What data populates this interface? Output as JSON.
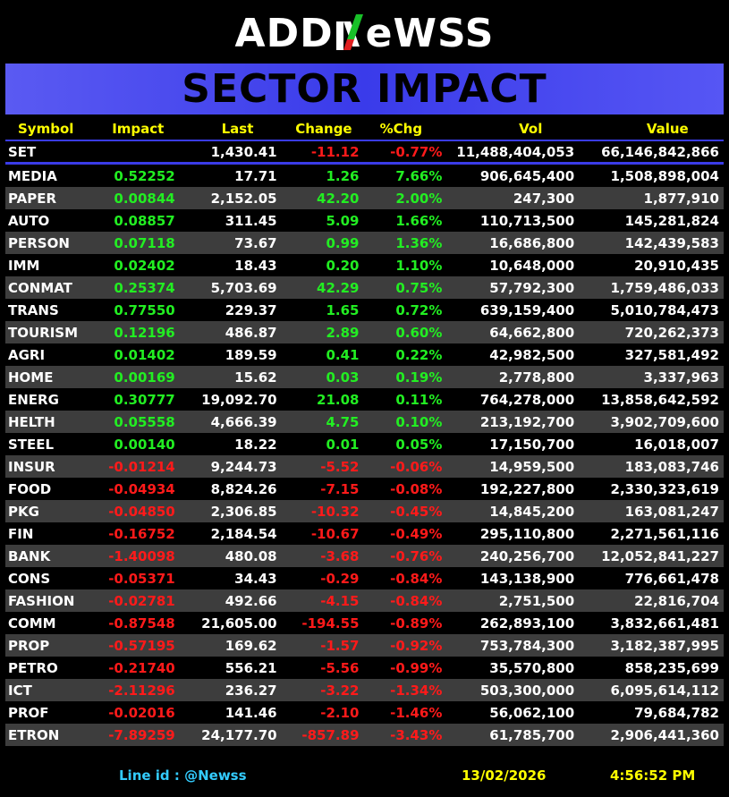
{
  "logo": {
    "left": "ADD",
    "right": "eWSS"
  },
  "banner": {
    "title": "SECTOR IMPACT"
  },
  "columns": [
    "Symbol",
    "Impact",
    "Last",
    "Change",
    "%Chg",
    "Vol",
    "Value"
  ],
  "set_row": {
    "symbol": "SET",
    "impact": "",
    "last": "1,430.41",
    "change": "-11.12",
    "pct": "-0.77%",
    "vol": "11,488,404,053",
    "value": "66,146,842,866"
  },
  "rows": [
    {
      "symbol": "MEDIA",
      "impact": "0.52252",
      "last": "17.71",
      "change": "1.26",
      "pct": "7.66%",
      "vol": "906,645,400",
      "value": "1,508,898,004",
      "dir": "pos"
    },
    {
      "symbol": "PAPER",
      "impact": "0.00844",
      "last": "2,152.05",
      "change": "42.20",
      "pct": "2.00%",
      "vol": "247,300",
      "value": "1,877,910",
      "dir": "pos"
    },
    {
      "symbol": "AUTO",
      "impact": "0.08857",
      "last": "311.45",
      "change": "5.09",
      "pct": "1.66%",
      "vol": "110,713,500",
      "value": "145,281,824",
      "dir": "pos"
    },
    {
      "symbol": "PERSON",
      "impact": "0.07118",
      "last": "73.67",
      "change": "0.99",
      "pct": "1.36%",
      "vol": "16,686,800",
      "value": "142,439,583",
      "dir": "pos"
    },
    {
      "symbol": "IMM",
      "impact": "0.02402",
      "last": "18.43",
      "change": "0.20",
      "pct": "1.10%",
      "vol": "10,648,000",
      "value": "20,910,435",
      "dir": "pos"
    },
    {
      "symbol": "CONMAT",
      "impact": "0.25374",
      "last": "5,703.69",
      "change": "42.29",
      "pct": "0.75%",
      "vol": "57,792,300",
      "value": "1,759,486,033",
      "dir": "pos"
    },
    {
      "symbol": "TRANS",
      "impact": "0.77550",
      "last": "229.37",
      "change": "1.65",
      "pct": "0.72%",
      "vol": "639,159,400",
      "value": "5,010,784,473",
      "dir": "pos"
    },
    {
      "symbol": "TOURISM",
      "impact": "0.12196",
      "last": "486.87",
      "change": "2.89",
      "pct": "0.60%",
      "vol": "64,662,800",
      "value": "720,262,373",
      "dir": "pos"
    },
    {
      "symbol": "AGRI",
      "impact": "0.01402",
      "last": "189.59",
      "change": "0.41",
      "pct": "0.22%",
      "vol": "42,982,500",
      "value": "327,581,492",
      "dir": "pos"
    },
    {
      "symbol": "HOME",
      "impact": "0.00169",
      "last": "15.62",
      "change": "0.03",
      "pct": "0.19%",
      "vol": "2,778,800",
      "value": "3,337,963",
      "dir": "pos"
    },
    {
      "symbol": "ENERG",
      "impact": "0.30777",
      "last": "19,092.70",
      "change": "21.08",
      "pct": "0.11%",
      "vol": "764,278,000",
      "value": "13,858,642,592",
      "dir": "pos"
    },
    {
      "symbol": "HELTH",
      "impact": "0.05558",
      "last": "4,666.39",
      "change": "4.75",
      "pct": "0.10%",
      "vol": "213,192,700",
      "value": "3,902,709,600",
      "dir": "pos"
    },
    {
      "symbol": "STEEL",
      "impact": "0.00140",
      "last": "18.22",
      "change": "0.01",
      "pct": "0.05%",
      "vol": "17,150,700",
      "value": "16,018,007",
      "dir": "pos"
    },
    {
      "symbol": "INSUR",
      "impact": "-0.01214",
      "last": "9,244.73",
      "change": "-5.52",
      "pct": "-0.06%",
      "vol": "14,959,500",
      "value": "183,083,746",
      "dir": "neg"
    },
    {
      "symbol": "FOOD",
      "impact": "-0.04934",
      "last": "8,824.26",
      "change": "-7.15",
      "pct": "-0.08%",
      "vol": "192,227,800",
      "value": "2,330,323,619",
      "dir": "neg"
    },
    {
      "symbol": "PKG",
      "impact": "-0.04850",
      "last": "2,306.85",
      "change": "-10.32",
      "pct": "-0.45%",
      "vol": "14,845,200",
      "value": "163,081,247",
      "dir": "neg"
    },
    {
      "symbol": "FIN",
      "impact": "-0.16752",
      "last": "2,184.54",
      "change": "-10.67",
      "pct": "-0.49%",
      "vol": "295,110,800",
      "value": "2,271,561,116",
      "dir": "neg"
    },
    {
      "symbol": "BANK",
      "impact": "-1.40098",
      "last": "480.08",
      "change": "-3.68",
      "pct": "-0.76%",
      "vol": "240,256,700",
      "value": "12,052,841,227",
      "dir": "neg"
    },
    {
      "symbol": "CONS",
      "impact": "-0.05371",
      "last": "34.43",
      "change": "-0.29",
      "pct": "-0.84%",
      "vol": "143,138,900",
      "value": "776,661,478",
      "dir": "neg"
    },
    {
      "symbol": "FASHION",
      "impact": "-0.02781",
      "last": "492.66",
      "change": "-4.15",
      "pct": "-0.84%",
      "vol": "2,751,500",
      "value": "22,816,704",
      "dir": "neg"
    },
    {
      "symbol": "COMM",
      "impact": "-0.87548",
      "last": "21,605.00",
      "change": "-194.55",
      "pct": "-0.89%",
      "vol": "262,893,100",
      "value": "3,832,661,481",
      "dir": "neg"
    },
    {
      "symbol": "PROP",
      "impact": "-0.57195",
      "last": "169.62",
      "change": "-1.57",
      "pct": "-0.92%",
      "vol": "753,784,300",
      "value": "3,182,387,995",
      "dir": "neg"
    },
    {
      "symbol": "PETRO",
      "impact": "-0.21740",
      "last": "556.21",
      "change": "-5.56",
      "pct": "-0.99%",
      "vol": "35,570,800",
      "value": "858,235,699",
      "dir": "neg"
    },
    {
      "symbol": "ICT",
      "impact": "-2.11296",
      "last": "236.27",
      "change": "-3.22",
      "pct": "-1.34%",
      "vol": "503,300,000",
      "value": "6,095,614,112",
      "dir": "neg"
    },
    {
      "symbol": "PROF",
      "impact": "-0.02016",
      "last": "141.46",
      "change": "-2.10",
      "pct": "-1.46%",
      "vol": "56,062,100",
      "value": "79,684,782",
      "dir": "neg"
    },
    {
      "symbol": "ETRON",
      "impact": "-7.89259",
      "last": "24,177.70",
      "change": "-857.89",
      "pct": "-3.43%",
      "vol": "61,785,700",
      "value": "2,906,441,360",
      "dir": "neg"
    }
  ],
  "footer": {
    "line_id": "Line id  : @Newss",
    "date": "13/02/2026",
    "time": "4:56:52 PM"
  },
  "colors": {
    "positive": "#22ee22",
    "negative": "#ff1a1a",
    "header": "#ffff00",
    "banner": "#3a3bea",
    "footer_line": "#33ccff"
  },
  "icons": {
    "logo_mark": "green-red-N-slash-icon"
  }
}
